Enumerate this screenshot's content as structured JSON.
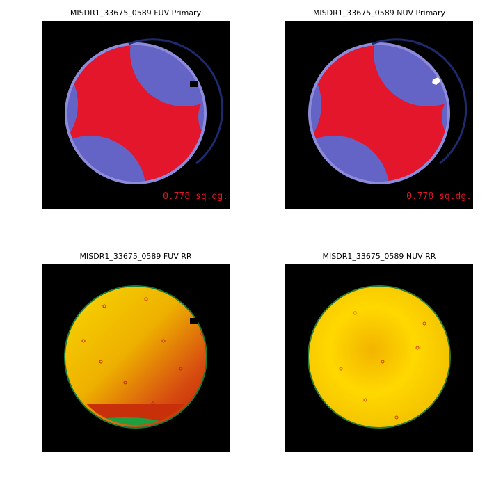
{
  "panels": [
    {
      "title": "MISDR1_33675_0589 FUV Primary",
      "annotation": "0.778 sq.dg."
    },
    {
      "title": "MISDR1_33675_0589 NUV Primary",
      "annotation": "0.778 sq.dg."
    },
    {
      "title": "MISDR1_33675_0589 FUV RR"
    },
    {
      "title": "MISDR1_33675_0589 NUV RR"
    }
  ]
}
